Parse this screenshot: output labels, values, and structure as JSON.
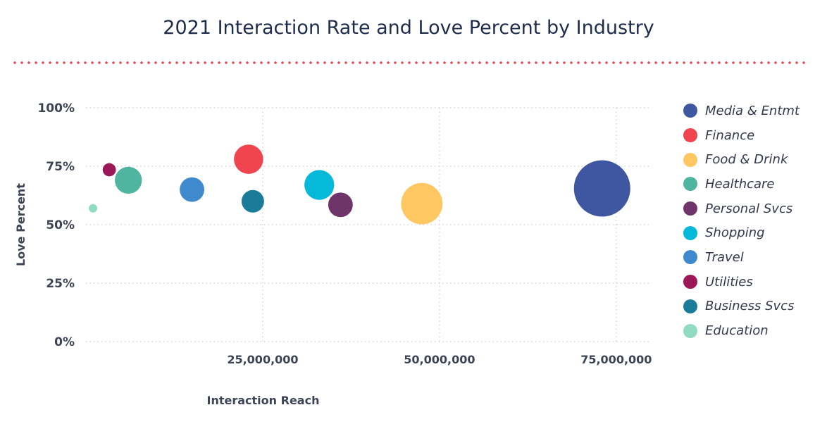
{
  "chart_data": {
    "type": "bubble",
    "title": "2021 Interaction Rate and Love Percent by Industry",
    "xlabel": "Interaction Reach",
    "ylabel": "Love Percent",
    "xlim": [
      0,
      80000000
    ],
    "ylim": [
      0,
      100
    ],
    "x_ticks": [
      {
        "value": 25000000,
        "label": "25,000,000"
      },
      {
        "value": 50000000,
        "label": "50,000,000"
      },
      {
        "value": 75000000,
        "label": "75,000,000"
      }
    ],
    "y_ticks": [
      {
        "value": 0,
        "label": "0%"
      },
      {
        "value": 25,
        "label": "25%"
      },
      {
        "value": 50,
        "label": "50%"
      },
      {
        "value": 75,
        "label": "75%"
      },
      {
        "value": 100,
        "label": "100%"
      }
    ],
    "grid": true,
    "legend_position": "right",
    "series": [
      {
        "name": "Media & Entmt",
        "color": "#3f57a0",
        "x": 73000000,
        "y": 65.5,
        "size": 1.0
      },
      {
        "name": "Finance",
        "color": "#f0444e",
        "x": 23000000,
        "y": 78,
        "size": 0.27
      },
      {
        "name": "Food & Drink",
        "color": "#fec761",
        "x": 47500000,
        "y": 59,
        "size": 0.54
      },
      {
        "name": "Healthcare",
        "color": "#4fb5a0",
        "x": 6000000,
        "y": 69,
        "size": 0.23
      },
      {
        "name": "Personal Svcs",
        "color": "#6f356a",
        "x": 36000000,
        "y": 58.5,
        "size": 0.19
      },
      {
        "name": "Shopping",
        "color": "#06b9d8",
        "x": 33000000,
        "y": 67,
        "size": 0.28
      },
      {
        "name": "Travel",
        "color": "#3f89cd",
        "x": 15000000,
        "y": 65,
        "size": 0.19
      },
      {
        "name": "Utilities",
        "color": "#9c1755",
        "x": 3300000,
        "y": 73.5,
        "size": 0.055
      },
      {
        "name": "Business Svcs",
        "color": "#1a7c98",
        "x": 23600000,
        "y": 60,
        "size": 0.16
      },
      {
        "name": "Education",
        "color": "#91dbc1",
        "x": 1000000,
        "y": 57,
        "size": 0.013
      }
    ]
  },
  "accent_color": "#e8434e"
}
